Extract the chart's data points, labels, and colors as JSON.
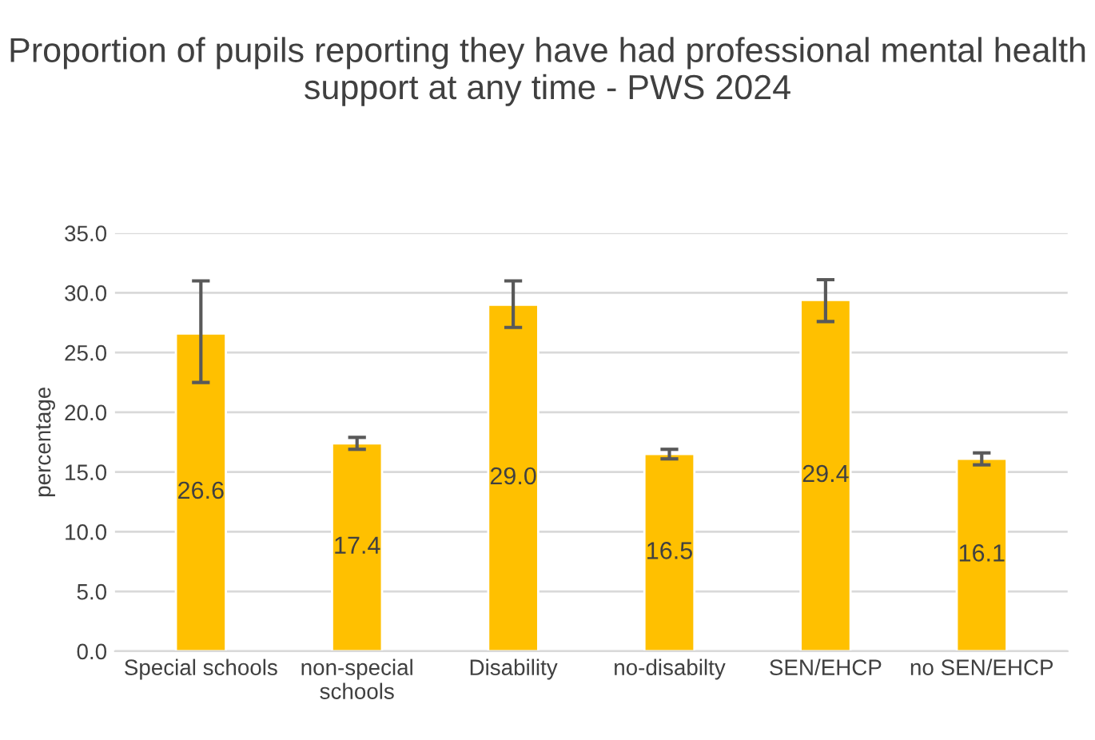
{
  "chart_data": {
    "type": "bar",
    "title": "Proportion of pupils reporting they have had professional mental health support at any time - PWS 2024",
    "categories": [
      "Special schools",
      "non-special schools",
      "Disability",
      "no-disabilty",
      "SEN/EHCP",
      "no SEN/EHCP"
    ],
    "values": [
      26.6,
      17.4,
      29.0,
      16.5,
      29.4,
      16.1
    ],
    "value_labels": [
      "26.6",
      "17.4",
      "29.0",
      "16.5",
      "29.4",
      "16.1"
    ],
    "errors": [
      [
        22.5,
        31.0
      ],
      [
        16.9,
        17.9
      ],
      [
        27.1,
        31.0
      ],
      [
        16.1,
        16.9
      ],
      [
        27.6,
        31.1
      ],
      [
        15.6,
        16.6
      ]
    ],
    "color": "#ffc000",
    "ylabel": "percentage",
    "ylim": [
      0,
      35
    ],
    "yticks": [
      {
        "value": 0,
        "label": "0.0"
      },
      {
        "value": 5,
        "label": "5.0"
      },
      {
        "value": 10,
        "label": "10.0"
      },
      {
        "value": 15,
        "label": "15.0"
      },
      {
        "value": 20,
        "label": "20.0"
      },
      {
        "value": 25,
        "label": "25.0"
      },
      {
        "value": 30,
        "label": "30.0"
      },
      {
        "value": 35,
        "label": "35.0"
      }
    ],
    "grid": "y",
    "legend": false
  }
}
